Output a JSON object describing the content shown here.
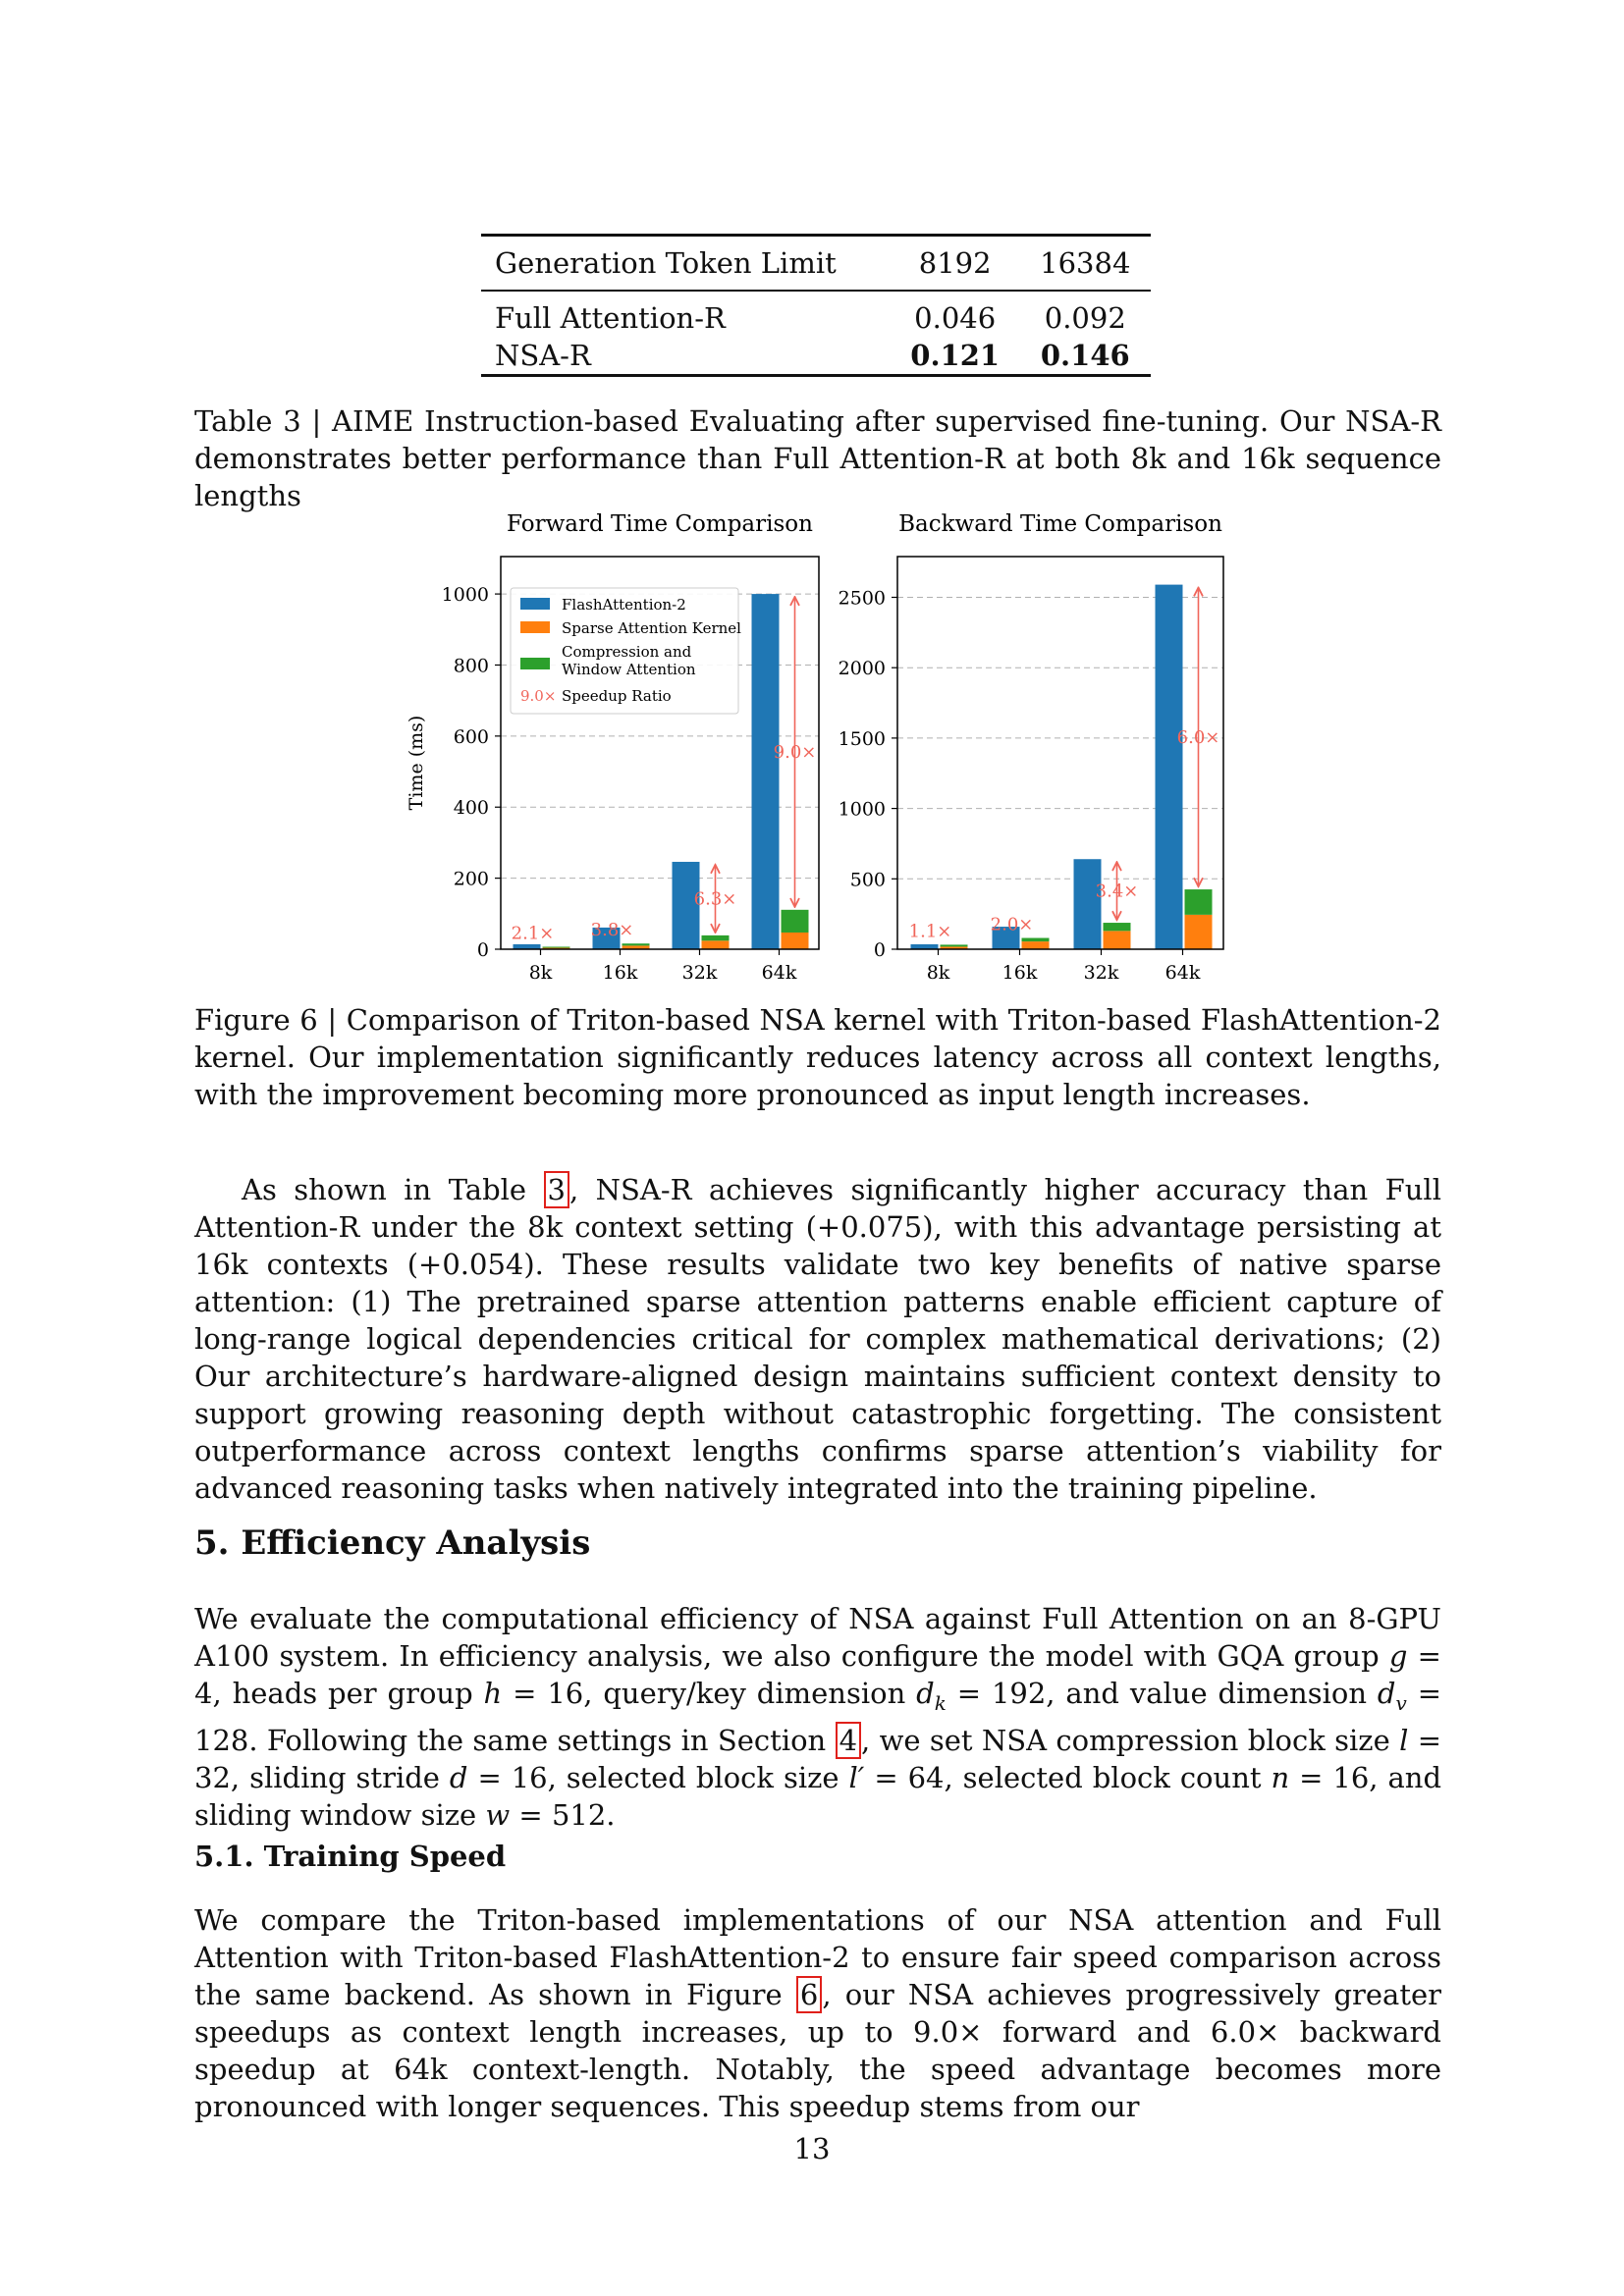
{
  "table3": {
    "header": {
      "label": "Generation Token Limit",
      "c1": "8192",
      "c2": "16384"
    },
    "rows": [
      {
        "label": "Full Attention-R",
        "c1": "0.046",
        "c2": "0.092"
      },
      {
        "label": "NSA-R",
        "c1": "0.121",
        "c2": "0.146"
      }
    ],
    "caption": "Table 3 | AIME Instruction-based Evaluating after supervised fine-tuning. Our NSA-R demonstrates better performance than Full Attention-R at both 8k and 16k sequence lengths"
  },
  "chart_data": [
    {
      "type": "bar",
      "title": "Forward Time Comparison",
      "ylabel": "Time (ms)",
      "categories": [
        "8k",
        "16k",
        "32k",
        "64k"
      ],
      "ylim": [
        0,
        1050
      ],
      "yticks": [
        "0",
        "200",
        "400",
        "600",
        "800",
        "1000"
      ],
      "series": [
        {
          "name": "FlashAttention-2",
          "color": "#1f77b4",
          "values": [
            14,
            61,
            246,
            1000
          ]
        },
        {
          "name": "Sparse Attention Kernel",
          "color": "#ff7f0e",
          "values": [
            4,
            10,
            24,
            47
          ]
        },
        {
          "name": "Compression and Window Attention",
          "color": "#2ca02c",
          "values": [
            3,
            6,
            15,
            64
          ]
        }
      ],
      "speedups": [
        "2.1×",
        "3.8×",
        "6.3×",
        "9.0×"
      ],
      "legend": [
        "FlashAttention-2",
        "Sparse Attention Kernel",
        "Compression and",
        "Window Attention",
        "Speedup Ratio"
      ],
      "legend_marker": "9.0×",
      "legend_position": "top-left"
    },
    {
      "type": "bar",
      "title": "Backward Time Comparison",
      "ylabel": "",
      "categories": [
        "8k",
        "16k",
        "32k",
        "64k"
      ],
      "ylim": [
        0,
        2650
      ],
      "yticks": [
        "0",
        "500",
        "1000",
        "1500",
        "2000",
        "2500"
      ],
      "series": [
        {
          "name": "FlashAttention-2",
          "color": "#1f77b4",
          "values": [
            35,
            160,
            640,
            2590
          ]
        },
        {
          "name": "Sparse Attention Kernel",
          "color": "#ff7f0e",
          "values": [
            18,
            55,
            130,
            245
          ]
        },
        {
          "name": "Compression and Window Attention",
          "color": "#2ca02c",
          "values": [
            14,
            25,
            58,
            180
          ]
        }
      ],
      "speedups": [
        "1.1×",
        "2.0×",
        "3.4×",
        "6.0×"
      ]
    }
  ],
  "figure6_caption": "Figure 6 | Comparison of Triton-based NSA kernel with Triton-based FlashAttention-2 kernel. Our implementation significantly reduces latency across all context lengths, with the improvement becoming more pronounced as input length increases.",
  "para1": {
    "before_ref": "As shown in Table ",
    "ref": "3",
    "after_ref": ", NSA-R achieves significantly higher accuracy than Full Attention-R under the 8k context setting (+0.075), with this advantage persisting at 16k contexts (+0.054). These results validate two key benefits of native sparse attention: (1) The pretrained sparse attention patterns enable efficient capture of long-range logical dependencies critical for complex mathematical derivations; (2) Our architecture’s hardware-aligned design maintains sufficient context density to support growing reasoning depth without catastrophic forgetting. The consistent outperformance across context lengths confirms sparse attention’s viability for advanced reasoning tasks when natively integrated into the training pipeline."
  },
  "section5": {
    "title": "5.  Efficiency Analysis",
    "p_a": "We evaluate the computational efficiency of NSA against Full Attention on an 8-GPU A100 system. In efficiency analysis, we also configure the model with GQA group ",
    "g": "g",
    "p_b": " = 4, heads per group ",
    "h": "h",
    "p_c": " = 16, query/key dimension ",
    "dk": "d",
    "dk_sub": "k",
    "p_d": " = 192, and value dimension ",
    "dv": "d",
    "dv_sub": "v",
    "p_e": " = 128. Following the same settings in Section ",
    "ref": "4",
    "p_f": ", we set NSA compression block size ",
    "l": "l",
    "p_g": " = 32, sliding stride ",
    "d": "d",
    "p_h": " = 16, selected block size ",
    "lp": "l′",
    "p_i": " = 64, selected block count ",
    "n": "n",
    "p_j": " = 16, and sliding window size ",
    "w": "w",
    "p_k": " = 512."
  },
  "section51": {
    "title": "5.1.  Training Speed",
    "p_a": "We compare the Triton-based implementations of our NSA attention and Full Attention with Triton-based FlashAttention-2 to ensure fair speed comparison across the same backend. As shown in Figure ",
    "ref": "6",
    "p_b": ", our NSA achieves progressively greater speedups as context length increases, up to 9.0× forward and 6.0× backward speedup at 64k context-length. Notably, the speed advantage becomes more pronounced with longer sequences. This speedup stems from our"
  },
  "page_number": "13"
}
